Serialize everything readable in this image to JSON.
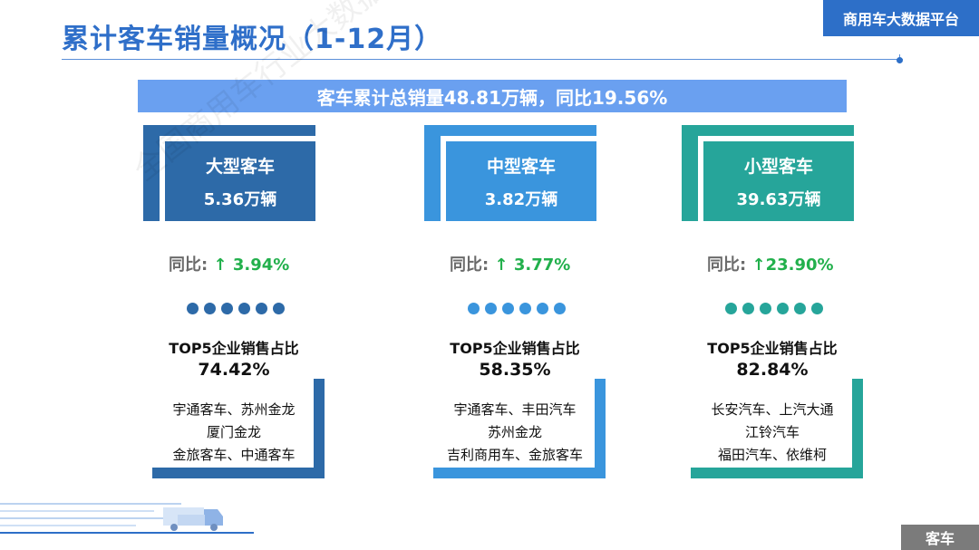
{
  "header": {
    "title": "累计客车销量概况（1-12月）",
    "brand": "商用车大数据平台"
  },
  "banner": "客车累计总销量48.81万辆，同比19.56%",
  "colors": {
    "large": "#2d6aa8",
    "medium": "#3a95dd",
    "small": "#26a59a",
    "accent": "#2f6fc9"
  },
  "columns": [
    {
      "type": "大型客车",
      "volume": "5.36万辆",
      "yoy_label": "同比:",
      "yoy": "↑ 3.94%",
      "top5_label": "TOP5企业销售占比",
      "top5_share": "74.42%",
      "companies": [
        "宇通客车、苏州金龙",
        "厦门金龙",
        "金旅客车、中通客车"
      ]
    },
    {
      "type": "中型客车",
      "volume": "3.82万辆",
      "yoy_label": "同比:",
      "yoy": "↑ 3.77%",
      "top5_label": "TOP5企业销售占比",
      "top5_share": "58.35%",
      "companies": [
        "宇通客车、丰田汽车",
        "苏州金龙",
        "吉利商用车、金旅客车"
      ]
    },
    {
      "type": "小型客车",
      "volume": "39.63万辆",
      "yoy_label": "同比:",
      "yoy": "↑23.90%",
      "top5_label": "TOP5企业销售占比",
      "top5_share": "82.84%",
      "companies": [
        "长安汽车、上汽大通",
        "江铃汽车",
        "福田汽车、依维柯"
      ]
    }
  ],
  "watermark": "全国商用车行业大数据平台",
  "corner_label": "客车"
}
